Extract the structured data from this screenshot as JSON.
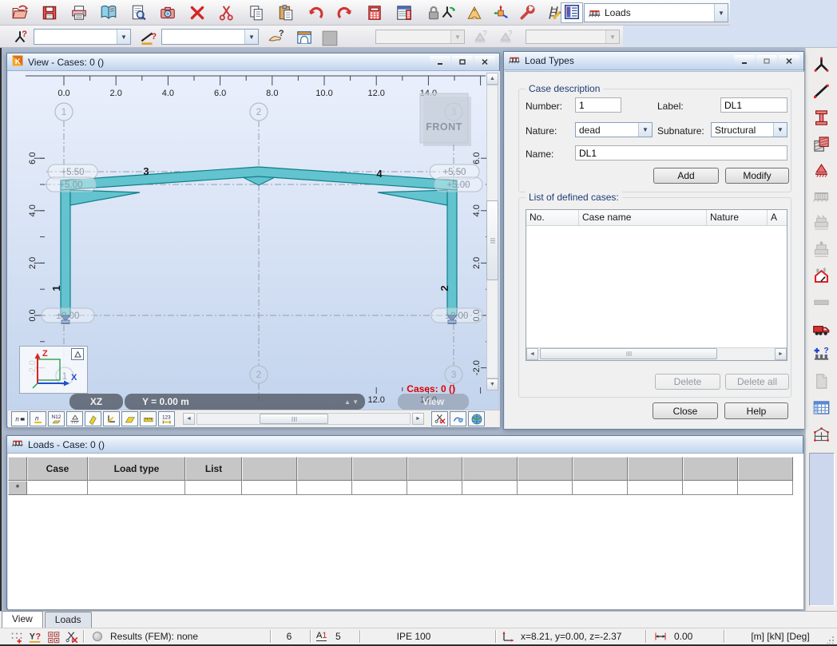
{
  "main_toolbar": {
    "file_icons": [
      {
        "name": "open-project"
      },
      {
        "name": "save"
      },
      {
        "name": "print"
      },
      {
        "name": "print-composition"
      },
      {
        "name": "print-preview"
      },
      {
        "name": "screen-capture"
      },
      {
        "name": "delete"
      },
      {
        "name": "cut"
      },
      {
        "name": "copy"
      },
      {
        "name": "paste"
      },
      {
        "name": "undo"
      },
      {
        "name": "redo"
      },
      {
        "name": "calculator"
      },
      {
        "name": "calculation-report"
      },
      {
        "name": "lock"
      }
    ],
    "tool_icons": [
      {
        "name": "nodes-regenerate"
      },
      {
        "name": "measure-tools"
      },
      {
        "name": "view-3d"
      },
      {
        "name": "preferences-tools"
      },
      {
        "name": "section-definition"
      }
    ],
    "case_list_icon": {
      "name": "case-list"
    },
    "layout_combo": {
      "value": "Loads",
      "icon": "loads"
    }
  },
  "selection_toolbar": {
    "node_selection_value": "",
    "bar_selection_value": "",
    "case_selection_value": "",
    "mode_selection_value": ""
  },
  "view_window": {
    "title": "View - Cases: 0 ()",
    "top_ruler": [
      "0.0",
      "2.0",
      "4.0",
      "6.0",
      "8.0",
      "10.0",
      "12.0",
      "14.0"
    ],
    "bottom_ruler": [
      "12.0",
      "14.0"
    ],
    "left_ruler": [
      "6.0",
      "4.0",
      "2.0",
      "0.0",
      "-2.0"
    ],
    "right_ruler": [
      "6.0",
      "4.0",
      "2.0",
      "0.0",
      "-2.0"
    ],
    "grid_axes": [
      "1",
      "2",
      "3"
    ],
    "levels": [
      "+5.50",
      "+5.00",
      "±0.00"
    ],
    "members": [
      "1",
      "2",
      "3",
      "4"
    ],
    "front_label": "FRONT",
    "cases_label": "Cases: 0 ()",
    "plane_label": "XZ",
    "y_position_label": "Y = 0.00 m",
    "view_overlay_label": "View",
    "axis_x_label": "X",
    "axis_z_label": "Z",
    "display_icons": [
      {
        "name": "node-numbers"
      },
      {
        "name": "node-symbols"
      },
      {
        "name": "bar-descriptions"
      },
      {
        "name": "supports-display"
      },
      {
        "name": "sketch-display"
      },
      {
        "name": "local-axes-display"
      },
      {
        "name": "section-shape-display"
      },
      {
        "name": "ruler-display"
      },
      {
        "name": "dimension-display"
      }
    ],
    "view_icons": [
      {
        "name": "cut-plane-off"
      },
      {
        "name": "section-view"
      },
      {
        "name": "render-view"
      }
    ]
  },
  "load_types_dialog": {
    "title": "Load Types",
    "case_description": {
      "group_label": "Case description",
      "number_label": "Number:",
      "number_value": "1",
      "label_label": "Label:",
      "label_value": "DL1",
      "nature_label": "Nature:",
      "nature_value": "dead",
      "subnature_label": "Subnature:",
      "subnature_value": "Structural",
      "name_label": "Name:",
      "name_value": "DL1",
      "add_button": "Add",
      "modify_button": "Modify"
    },
    "defined_cases": {
      "group_label": "List of defined cases:",
      "columns": [
        "No.",
        "Case name",
        "Nature",
        "A"
      ],
      "rows": [],
      "delete_button": "Delete",
      "delete_all_button": "Delete all"
    },
    "close_button": "Close",
    "help_button": "Help"
  },
  "structure_toolbar": {
    "icons": [
      {
        "name": "nodes"
      },
      {
        "name": "bars"
      },
      {
        "name": "sections"
      },
      {
        "name": "panels"
      },
      {
        "name": "supports"
      },
      {
        "name": "load-types",
        "disabled": true
      },
      {
        "name": "load-definition",
        "disabled": true
      },
      {
        "name": "load-tables",
        "disabled": true
      },
      {
        "name": "climate-loads"
      },
      {
        "name": "bars-option",
        "disabled": true
      },
      {
        "name": "moving-loads"
      },
      {
        "name": "load-combinations"
      },
      {
        "name": "report",
        "disabled": true
      },
      {
        "name": "tables"
      },
      {
        "name": "frame-view"
      }
    ]
  },
  "loads_panel": {
    "title": "Loads - Case: 0 ()",
    "columns": [
      "",
      "Case",
      "Load type",
      "List",
      "",
      "",
      "",
      "",
      "",
      "",
      "",
      "",
      "",
      ""
    ],
    "new_row_marker": "*"
  },
  "bottom_tabs": [
    {
      "label": "View",
      "active": true
    },
    {
      "label": "Loads",
      "active": false
    }
  ],
  "status_bar": {
    "icons": [
      {
        "name": "snap-settings"
      },
      {
        "name": "attributes-display"
      },
      {
        "name": "layout-blocks"
      },
      {
        "name": "cut-planes-off"
      }
    ],
    "results_label": "Results (FEM): none",
    "nodes_value": "6",
    "section_symbol": "A1",
    "bars_value": "5",
    "section_name": "IPE 100",
    "cursor_coordinates": "x=8.21, y=0.00, z=-2.37",
    "angle_value": "0.00",
    "units": "[m] [kN] [Deg]"
  },
  "colors": {
    "member_fill": "#63c3ce",
    "member_outline": "#0d7f8b",
    "cases_red": "#e00000",
    "support_blue": "#2e66bb"
  }
}
